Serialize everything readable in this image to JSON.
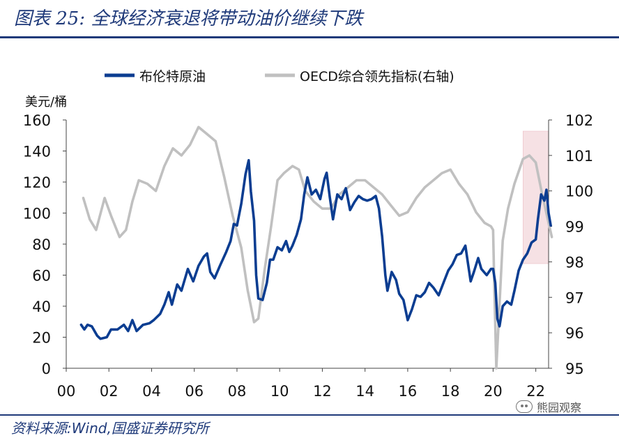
{
  "header": {
    "title": "图表 25:  全球经济衰退将带动油价继续下跌"
  },
  "footer": {
    "source": "资料来源:Wind,国盛证券研究所",
    "watermark": "熊园观察"
  },
  "colors": {
    "brent": "#0b3d91",
    "oecd": "#c0c0c0",
    "highlight": "#f6e1e4",
    "title": "#1f3a7a"
  },
  "chart_data": {
    "type": "line",
    "title": "",
    "legend_position": "top",
    "legend": [
      "布伦特原油",
      "OECD综合领先指标(右轴)"
    ],
    "y_left_label": "美元/桶",
    "y_left_ticks": [
      "0",
      "20",
      "40",
      "60",
      "80",
      "100",
      "120",
      "140",
      "160"
    ],
    "y_left_range": [
      0,
      160
    ],
    "y_right_ticks": [
      "95",
      "96",
      "97",
      "98",
      "99",
      "100",
      "101",
      "102"
    ],
    "y_right_range": [
      95,
      102
    ],
    "x_tick_labels": [
      "00",
      "02",
      "04",
      "06",
      "08",
      "10",
      "12",
      "14",
      "16",
      "18",
      "20",
      "22"
    ],
    "x_ticks": [
      2000,
      2002,
      2004,
      2006,
      2008,
      2010,
      2012,
      2014,
      2016,
      2018,
      2020,
      2022
    ],
    "x_range": [
      2000,
      2022.6
    ],
    "highlight_x_range": [
      2021.4,
      2022.6
    ],
    "series": [
      {
        "name": "布伦特原油",
        "axis": "left",
        "points": [
          [
            2000.7,
            28
          ],
          [
            2000.85,
            25
          ],
          [
            2001.0,
            28
          ],
          [
            2001.2,
            27
          ],
          [
            2001.45,
            21
          ],
          [
            2001.6,
            19
          ],
          [
            2001.9,
            20
          ],
          [
            2002.1,
            25
          ],
          [
            2002.4,
            25
          ],
          [
            2002.7,
            28
          ],
          [
            2002.9,
            24
          ],
          [
            2003.1,
            31
          ],
          [
            2003.3,
            24
          ],
          [
            2003.6,
            28
          ],
          [
            2003.9,
            29
          ],
          [
            2004.1,
            31
          ],
          [
            2004.4,
            35
          ],
          [
            2004.6,
            41
          ],
          [
            2004.8,
            49
          ],
          [
            2004.95,
            41
          ],
          [
            2005.2,
            54
          ],
          [
            2005.4,
            50
          ],
          [
            2005.7,
            64
          ],
          [
            2005.95,
            56
          ],
          [
            2006.2,
            66
          ],
          [
            2006.45,
            72
          ],
          [
            2006.6,
            74
          ],
          [
            2006.75,
            62
          ],
          [
            2006.95,
            58
          ],
          [
            2007.2,
            66
          ],
          [
            2007.5,
            75
          ],
          [
            2007.7,
            82
          ],
          [
            2007.85,
            93
          ],
          [
            2008.0,
            92
          ],
          [
            2008.2,
            106
          ],
          [
            2008.4,
            125
          ],
          [
            2008.55,
            134
          ],
          [
            2008.65,
            114
          ],
          [
            2008.8,
            95
          ],
          [
            2008.9,
            60
          ],
          [
            2009.0,
            45
          ],
          [
            2009.2,
            44
          ],
          [
            2009.4,
            55
          ],
          [
            2009.55,
            70
          ],
          [
            2009.7,
            70
          ],
          [
            2009.9,
            78
          ],
          [
            2010.1,
            76
          ],
          [
            2010.3,
            82
          ],
          [
            2010.45,
            75
          ],
          [
            2010.6,
            79
          ],
          [
            2010.8,
            86
          ],
          [
            2011.0,
            96
          ],
          [
            2011.15,
            112
          ],
          [
            2011.3,
            123
          ],
          [
            2011.5,
            112
          ],
          [
            2011.7,
            115
          ],
          [
            2011.9,
            109
          ],
          [
            2012.1,
            122
          ],
          [
            2012.2,
            126
          ],
          [
            2012.35,
            110
          ],
          [
            2012.5,
            96
          ],
          [
            2012.7,
            112
          ],
          [
            2012.9,
            109
          ],
          [
            2013.1,
            116
          ],
          [
            2013.3,
            102
          ],
          [
            2013.5,
            107
          ],
          [
            2013.7,
            111
          ],
          [
            2013.9,
            109
          ],
          [
            2014.1,
            108
          ],
          [
            2014.3,
            109
          ],
          [
            2014.5,
            111
          ],
          [
            2014.65,
            103
          ],
          [
            2014.8,
            85
          ],
          [
            2014.95,
            60
          ],
          [
            2015.05,
            50
          ],
          [
            2015.25,
            62
          ],
          [
            2015.45,
            57
          ],
          [
            2015.6,
            48
          ],
          [
            2015.8,
            44
          ],
          [
            2016.0,
            31
          ],
          [
            2016.2,
            38
          ],
          [
            2016.4,
            47
          ],
          [
            2016.6,
            46
          ],
          [
            2016.8,
            49
          ],
          [
            2017.0,
            55
          ],
          [
            2017.2,
            52
          ],
          [
            2017.45,
            47
          ],
          [
            2017.7,
            56
          ],
          [
            2017.9,
            63
          ],
          [
            2018.1,
            67
          ],
          [
            2018.3,
            73
          ],
          [
            2018.5,
            74
          ],
          [
            2018.7,
            79
          ],
          [
            2018.85,
            65
          ],
          [
            2018.95,
            56
          ],
          [
            2019.1,
            62
          ],
          [
            2019.3,
            71
          ],
          [
            2019.45,
            64
          ],
          [
            2019.7,
            60
          ],
          [
            2019.9,
            64
          ],
          [
            2020.0,
            64
          ],
          [
            2020.1,
            55
          ],
          [
            2020.2,
            32
          ],
          [
            2020.3,
            27
          ],
          [
            2020.45,
            40
          ],
          [
            2020.65,
            43
          ],
          [
            2020.85,
            41
          ],
          [
            2021.0,
            50
          ],
          [
            2021.2,
            63
          ],
          [
            2021.4,
            70
          ],
          [
            2021.6,
            74
          ],
          [
            2021.8,
            81
          ],
          [
            2022.0,
            83
          ],
          [
            2022.1,
            96
          ],
          [
            2022.25,
            112
          ],
          [
            2022.4,
            108
          ],
          [
            2022.5,
            115
          ],
          [
            2022.6,
            100
          ],
          [
            2022.7,
            92
          ]
        ]
      },
      {
        "name": "OECD综合领先指标(右轴)",
        "axis": "right",
        "points": [
          [
            2000.8,
            99.8
          ],
          [
            2001.1,
            99.2
          ],
          [
            2001.4,
            98.9
          ],
          [
            2001.8,
            99.8
          ],
          [
            2002.1,
            99.3
          ],
          [
            2002.5,
            98.7
          ],
          [
            2002.8,
            98.9
          ],
          [
            2003.1,
            99.7
          ],
          [
            2003.4,
            100.3
          ],
          [
            2003.8,
            100.2
          ],
          [
            2004.2,
            100.0
          ],
          [
            2004.6,
            100.7
          ],
          [
            2005.0,
            101.2
          ],
          [
            2005.4,
            101.0
          ],
          [
            2005.8,
            101.3
          ],
          [
            2006.2,
            101.8
          ],
          [
            2006.6,
            101.6
          ],
          [
            2007.0,
            101.4
          ],
          [
            2007.4,
            100.4
          ],
          [
            2007.8,
            99.3
          ],
          [
            2008.2,
            98.4
          ],
          [
            2008.5,
            97.2
          ],
          [
            2008.8,
            96.3
          ],
          [
            2009.0,
            96.4
          ],
          [
            2009.3,
            97.8
          ],
          [
            2009.6,
            99.0
          ],
          [
            2009.9,
            100.3
          ],
          [
            2010.2,
            100.5
          ],
          [
            2010.6,
            100.7
          ],
          [
            2010.9,
            100.6
          ],
          [
            2011.2,
            100.0
          ],
          [
            2011.6,
            99.7
          ],
          [
            2012.0,
            99.5
          ],
          [
            2012.4,
            99.5
          ],
          [
            2012.8,
            99.9
          ],
          [
            2013.2,
            100.1
          ],
          [
            2013.6,
            100.3
          ],
          [
            2014.0,
            100.3
          ],
          [
            2014.4,
            100.1
          ],
          [
            2014.8,
            99.9
          ],
          [
            2015.2,
            99.6
          ],
          [
            2015.6,
            99.3
          ],
          [
            2016.0,
            99.4
          ],
          [
            2016.4,
            99.8
          ],
          [
            2016.8,
            100.1
          ],
          [
            2017.2,
            100.3
          ],
          [
            2017.6,
            100.5
          ],
          [
            2018.0,
            100.6
          ],
          [
            2018.4,
            100.2
          ],
          [
            2018.8,
            99.9
          ],
          [
            2019.2,
            99.4
          ],
          [
            2019.6,
            99.1
          ],
          [
            2019.9,
            99.0
          ],
          [
            2020.0,
            98.9
          ],
          [
            2020.05,
            97.5
          ],
          [
            2020.15,
            95.0
          ],
          [
            2020.3,
            96.8
          ],
          [
            2020.45,
            98.6
          ],
          [
            2020.7,
            99.5
          ],
          [
            2021.0,
            100.2
          ],
          [
            2021.4,
            100.9
          ],
          [
            2021.7,
            101.0
          ],
          [
            2022.0,
            100.8
          ],
          [
            2022.3,
            99.9
          ],
          [
            2022.6,
            99.1
          ],
          [
            2022.75,
            98.7
          ]
        ]
      }
    ]
  }
}
